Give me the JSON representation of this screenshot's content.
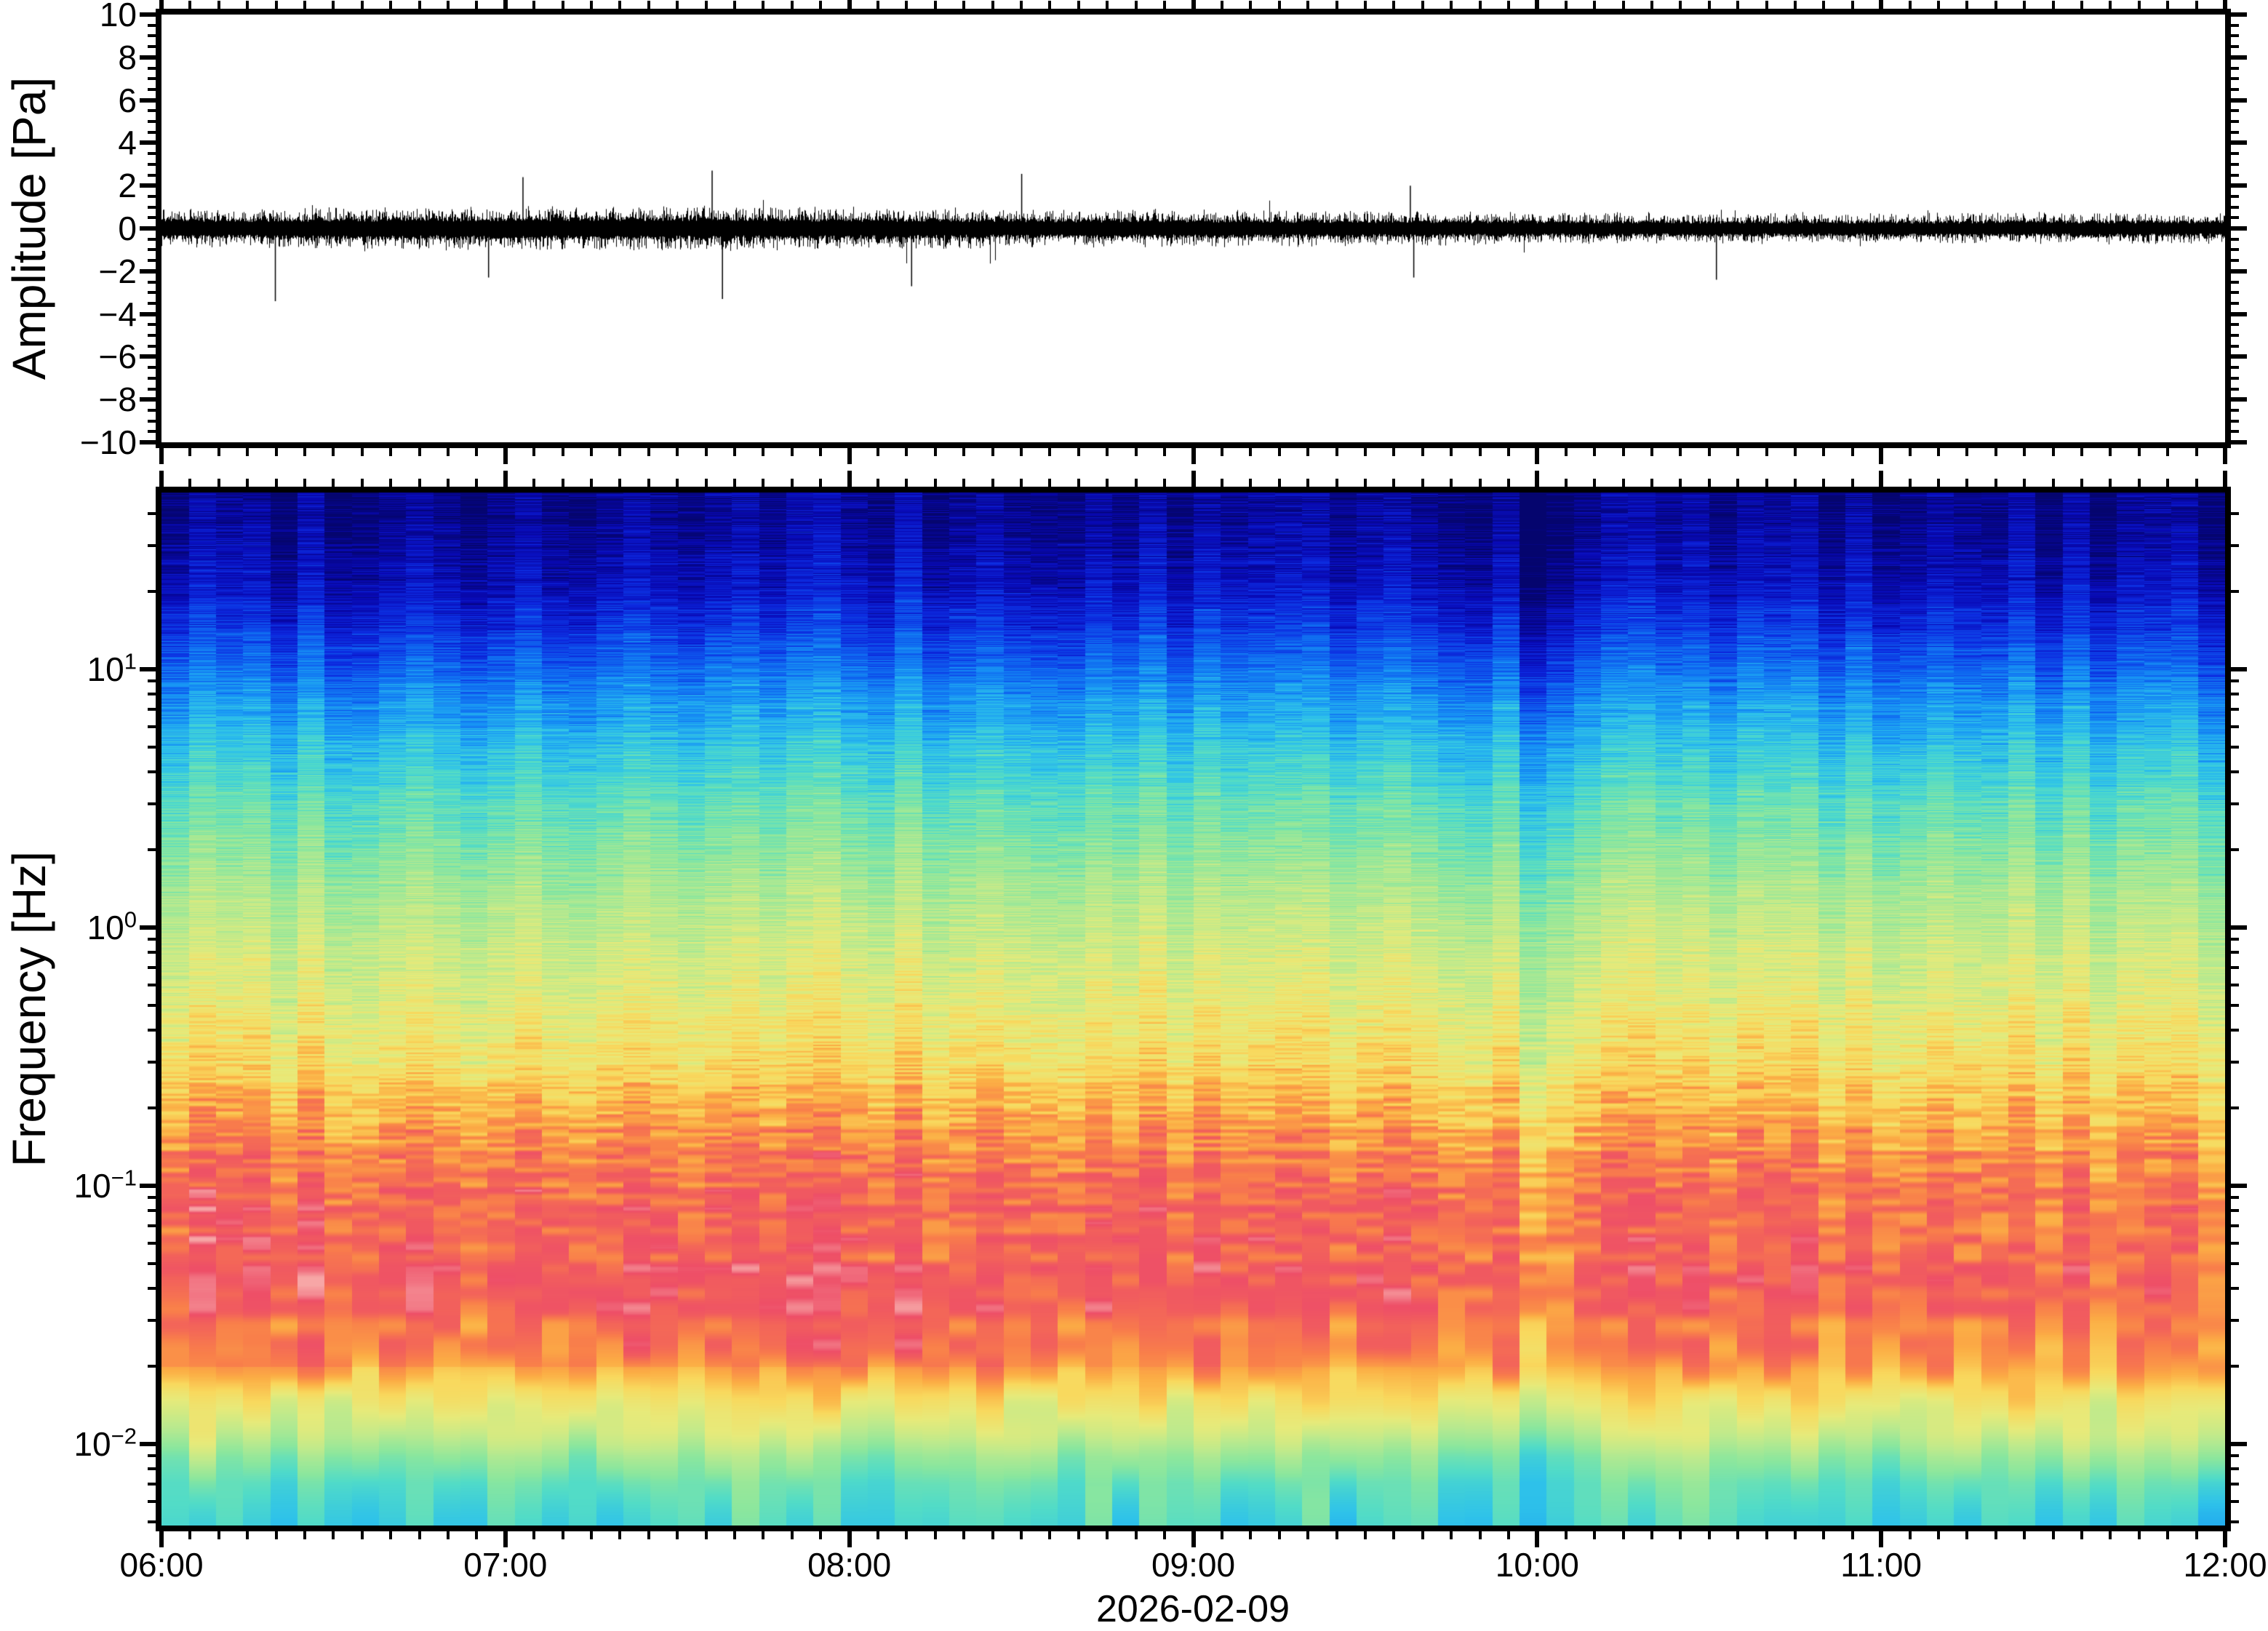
{
  "figure": {
    "background": "#ffffff",
    "frame_color": "#000000",
    "waveform_color": "#000000"
  },
  "axes": {
    "amplitude": {
      "label": "Amplitude [Pa]",
      "unit": "Pa",
      "ylim": [
        -10,
        10
      ],
      "major_tick_interval": 2,
      "minor_tick_interval": 0.5,
      "tick_values": [
        10,
        8,
        6,
        4,
        2,
        0,
        -2,
        -4,
        -6,
        -8,
        -10
      ],
      "tick_labels": [
        "10",
        "8",
        "6",
        "4",
        "2",
        "0",
        "−2",
        "−4",
        "−6",
        "−8",
        "−10"
      ]
    },
    "frequency": {
      "label": "Frequency [Hz]",
      "unit": "Hz",
      "scale": "log",
      "ylim_hz": [
        0.0048,
        48.3
      ],
      "tick_labels": [
        {
          "base": "10",
          "exponent": "1",
          "value_hz": 10
        },
        {
          "base": "10",
          "exponent": "0",
          "value_hz": 1
        },
        {
          "base": "10",
          "exponent": "−1",
          "value_hz": 0.1
        },
        {
          "base": "10",
          "exponent": "−2",
          "value_hz": 0.01
        }
      ]
    },
    "time": {
      "start": "06:00",
      "end": "12:00",
      "major_tick_labels": [
        "06:00",
        "07:00",
        "08:00",
        "09:00",
        "10:00",
        "11:00",
        "12:00"
      ],
      "minor_tick_minutes": 5,
      "date_label": "2026-02-09"
    }
  },
  "chart_data": [
    {
      "id": "waveform",
      "type": "line",
      "title": "",
      "xlabel": "",
      "ylabel": "Amplitude [Pa]",
      "ylim": [
        -10,
        10
      ],
      "x_range": [
        "06:00",
        "12:00"
      ],
      "line_color": "#000000",
      "description": "Zero-mean broadband infrasound pressure noise; dense band about ±0.5-1 Pa, strongest 06:00-08:30, slowly decaying toward 12:00.",
      "envelope_rms_pa_per_30min": [
        0.52,
        0.56,
        0.58,
        0.6,
        0.57,
        0.52,
        0.5,
        0.46,
        0.43,
        0.41,
        0.41,
        0.42,
        0.42
      ],
      "spikes": [
        {
          "hours_after_start": 0.33,
          "amplitude_pa": -3.4
        },
        {
          "hours_after_start": 0.95,
          "amplitude_pa": -2.3
        },
        {
          "hours_after_start": 1.05,
          "amplitude_pa": 2.4
        },
        {
          "hours_after_start": 1.6,
          "amplitude_pa": 2.7
        },
        {
          "hours_after_start": 1.63,
          "amplitude_pa": -3.3
        },
        {
          "hours_after_start": 2.18,
          "amplitude_pa": -2.7
        },
        {
          "hours_after_start": 2.5,
          "amplitude_pa": 2.55
        },
        {
          "hours_after_start": 3.63,
          "amplitude_pa": 2.0
        },
        {
          "hours_after_start": 3.64,
          "amplitude_pa": -2.3
        },
        {
          "hours_after_start": 4.52,
          "amplitude_pa": -2.4
        }
      ]
    },
    {
      "id": "spectrogram",
      "type": "heatmap",
      "xlabel": "2026-02-09",
      "ylabel": "Frequency [Hz]",
      "yscale": "log",
      "ylim_hz": [
        0.0048,
        48.3
      ],
      "x_range": [
        "06:00",
        "12:00"
      ],
      "time_columns": 76,
      "frequency_bin_hz": 0.0048,
      "description": "Power spectral density vs time; linear frequency bins shown on a log axis (fine striping at high frequency, smooth blocks at low frequency). Peak power (red/pink) in the 0.03-0.2 Hz microbarom band; dark blue background above 10 Hz; teal/green floor below 0.01 Hz. Slightly cyan (quieter) column near 10:00.",
      "power_profile_logf_vs_norm": [
        [
          1.684,
          0.03
        ],
        [
          1.5,
          0.06
        ],
        [
          1.3,
          0.1
        ],
        [
          1.15,
          0.16
        ],
        [
          1.0,
          0.23
        ],
        [
          0.85,
          0.3
        ],
        [
          0.7,
          0.36
        ],
        [
          0.5,
          0.44
        ],
        [
          0.3,
          0.5
        ],
        [
          0.1,
          0.57
        ],
        [
          -0.1,
          0.62
        ],
        [
          -0.3,
          0.66
        ],
        [
          -0.5,
          0.7
        ],
        [
          -0.7,
          0.77
        ],
        [
          -0.85,
          0.82
        ],
        [
          -1.0,
          0.865
        ],
        [
          -1.15,
          0.88
        ],
        [
          -1.4,
          0.89
        ],
        [
          -1.55,
          0.86
        ],
        [
          -1.7,
          0.8
        ],
        [
          -1.85,
          0.7
        ],
        [
          -1.95,
          0.62
        ],
        [
          -2.05,
          0.52
        ],
        [
          -2.15,
          0.46
        ],
        [
          -2.32,
          0.42
        ]
      ],
      "row_noise": 0.055,
      "column_noise": 0.045,
      "quiet_columns": [
        {
          "column": 50,
          "offset": -0.1
        },
        {
          "column": 51,
          "offset": -0.06
        }
      ],
      "colormap_stops": [
        [
          0.0,
          "#05056e"
        ],
        [
          0.07,
          "#0909b4"
        ],
        [
          0.14,
          "#0d2ae0"
        ],
        [
          0.21,
          "#0f62f0"
        ],
        [
          0.28,
          "#1896f5"
        ],
        [
          0.35,
          "#2fc3ea"
        ],
        [
          0.42,
          "#52dcc8"
        ],
        [
          0.5,
          "#8ce79e"
        ],
        [
          0.58,
          "#bcea8e"
        ],
        [
          0.66,
          "#e8ea7a"
        ],
        [
          0.73,
          "#f9d95e"
        ],
        [
          0.79,
          "#fcae45"
        ],
        [
          0.85,
          "#f97f4b"
        ],
        [
          0.9,
          "#f25f5d"
        ],
        [
          0.95,
          "#ee4f68"
        ],
        [
          1.0,
          "#f7a6a6"
        ]
      ]
    }
  ]
}
